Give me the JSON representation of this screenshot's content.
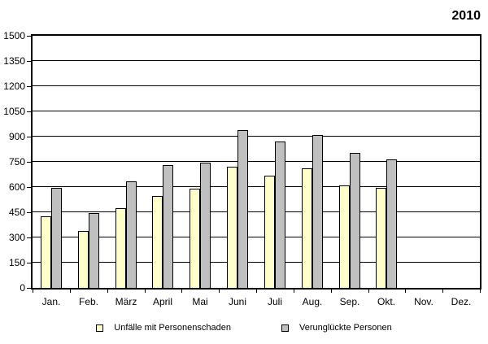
{
  "title": "2010",
  "chart_data": {
    "type": "bar",
    "title": "2010",
    "categories": [
      "Jan.",
      "Feb.",
      "März",
      "April",
      "Mai",
      "Juni",
      "Juli",
      "Aug.",
      "Sep.",
      "Okt.",
      "Nov.",
      "Dez."
    ],
    "series": [
      {
        "name": "Unfälle mit Personenschaden",
        "color": "#ffffcc",
        "values": [
          425,
          340,
          475,
          545,
          590,
          720,
          670,
          710,
          610,
          595,
          null,
          null
        ]
      },
      {
        "name": "Verunglückte Personen",
        "color": "#c0c0c0",
        "values": [
          595,
          445,
          635,
          730,
          745,
          940,
          870,
          910,
          805,
          765,
          null,
          null
        ]
      }
    ],
    "xlabel": "",
    "ylabel": "",
    "ylim": [
      0,
      1500
    ],
    "ytick_step": 150,
    "ytick_labels": [
      "0",
      "150",
      "300",
      "450",
      "600",
      "750",
      "900",
      "1050",
      "1200",
      "1350",
      "1500"
    ],
    "grid": "horizontal",
    "legend_position": "bottom"
  },
  "colors": {
    "background": "#ffffff",
    "axis": "#000000",
    "bar_border": "#000000",
    "series_1": "#ffffcc",
    "series_2": "#c0c0c0"
  }
}
